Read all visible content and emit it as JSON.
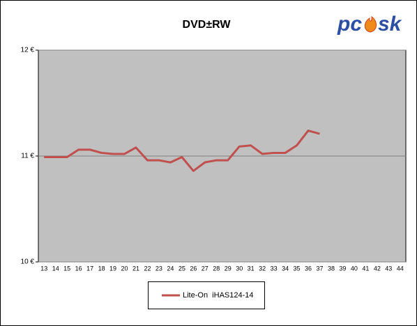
{
  "chart_data": {
    "type": "line",
    "title": "DVD±RW",
    "logo": [
      "pc",
      "sk"
    ],
    "categories": [
      "13",
      "14",
      "15",
      "16",
      "17",
      "18",
      "19",
      "20",
      "21",
      "22",
      "23",
      "24",
      "25",
      "26",
      "27",
      "28",
      "29",
      "30",
      "31",
      "32",
      "33",
      "34",
      "35",
      "36",
      "37",
      "38",
      "39",
      "40",
      "41",
      "42",
      "43",
      "44"
    ],
    "series": [
      {
        "name": "Lite-On  iHAS124-14",
        "color": "#c0504d",
        "values": [
          10.99,
          10.99,
          10.99,
          11.06,
          11.06,
          11.03,
          11.02,
          11.02,
          11.08,
          10.96,
          10.96,
          10.94,
          10.99,
          10.86,
          10.94,
          10.96,
          10.96,
          11.09,
          11.1,
          11.02,
          11.03,
          11.03,
          11.1,
          11.24,
          11.21,
          null,
          null,
          null,
          null,
          null,
          null,
          null
        ]
      }
    ],
    "ylim": [
      10,
      12
    ],
    "yticks": [
      {
        "value": 10,
        "label": "10 €"
      },
      {
        "value": 11,
        "label": "11 €"
      },
      {
        "value": 12,
        "label": "12 €"
      }
    ],
    "grid": true,
    "legend": "bottom"
  }
}
